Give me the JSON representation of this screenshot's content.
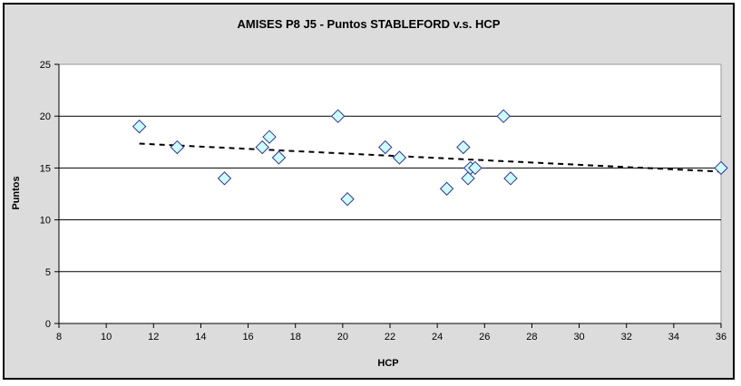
{
  "chart_data": {
    "type": "scatter",
    "title": "AMISES P8 J5 - Puntos STABLEFORD v.s. HCP",
    "xlabel": "HCP",
    "ylabel": "Puntos",
    "xlim": [
      8,
      36
    ],
    "ylim": [
      0,
      25
    ],
    "x_ticks": [
      8,
      10,
      12,
      14,
      16,
      18,
      20,
      22,
      24,
      26,
      28,
      30,
      32,
      34,
      36
    ],
    "y_ticks": [
      0,
      5,
      10,
      15,
      20,
      25
    ],
    "grid": "horizontal",
    "legend_position": "none",
    "series": [
      {
        "name": "Puntos STABLEFORD vs HCP",
        "marker": "diamond",
        "points": [
          [
            11.4,
            19
          ],
          [
            13.0,
            17
          ],
          [
            15.0,
            14
          ],
          [
            16.6,
            17
          ],
          [
            16.9,
            18
          ],
          [
            17.3,
            16
          ],
          [
            19.8,
            20
          ],
          [
            20.2,
            12
          ],
          [
            21.8,
            17
          ],
          [
            22.4,
            16
          ],
          [
            24.4,
            13
          ],
          [
            25.1,
            17
          ],
          [
            25.3,
            14
          ],
          [
            25.4,
            15
          ],
          [
            25.6,
            15
          ],
          [
            26.8,
            20
          ],
          [
            27.1,
            14
          ],
          [
            36.0,
            15
          ]
        ]
      }
    ],
    "trendline": {
      "style": "dotted",
      "x1": 11.4,
      "y1": 17.35,
      "x2": 36.0,
      "y2": 14.65
    },
    "colors": {
      "chart_background": "#dcdcdc",
      "plot_background": "#ffffff",
      "marker_fill": "#ccffff",
      "marker_stroke": "#333399",
      "gridline": "#000000",
      "axis": "#000000",
      "plot_border": "#999999",
      "trendline": "#000000"
    }
  }
}
